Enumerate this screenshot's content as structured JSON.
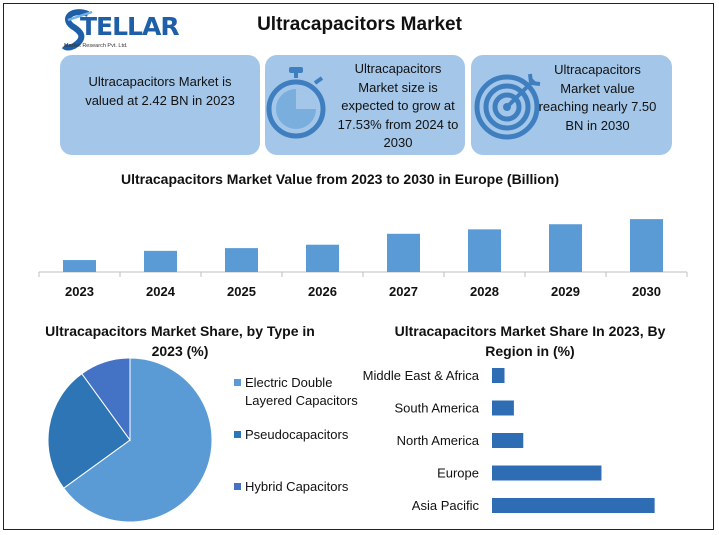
{
  "header": {
    "title": "Ultracapacitors Market",
    "logo_text": "TELLAR",
    "logo_subtext": "Market Research Pvt. Ltd."
  },
  "cards": [
    {
      "text": "Ultracapacitors Market is valued at 2.42 BN in 2023",
      "icon": "none"
    },
    {
      "text": "Ultracapacitors Market size is expected to grow at 17.53% from 2024 to 2030",
      "icon": "stopwatch-icon"
    },
    {
      "text": "Ultracapacitors Market value reaching nearly 7.50 BN in 2030",
      "icon": "target-icon"
    }
  ],
  "colors": {
    "card_bg": "#a4c7e9",
    "bar": "#5b9bd5",
    "pie_main": "#5b9bd5",
    "pie_second": "#2e75b6",
    "pie_third": "#4472c4",
    "hbar": "#2e6db4",
    "logo": "#1f5fa8"
  },
  "chart_data": [
    {
      "type": "bar",
      "title": "Ultracapacitors Market Value from 2023 to 2030 in Europe (Billion)",
      "categories": [
        "2023",
        "2024",
        "2025",
        "2026",
        "2027",
        "2028",
        "2029",
        "2030"
      ],
      "values": [
        0.35,
        0.62,
        0.7,
        0.8,
        1.12,
        1.25,
        1.4,
        1.55
      ],
      "ylim": [
        0,
        1.7
      ],
      "grid": false
    },
    {
      "type": "pie",
      "title": "Ultracapacitors Market Share, by Type in 2023 (%)",
      "labels": [
        "Electric Double Layered Capacitors",
        "Pseudocapacitors",
        "Hybrid Capacitors"
      ],
      "values": [
        65,
        25,
        10
      ],
      "legend": "right"
    },
    {
      "type": "bar",
      "orientation": "horizontal",
      "title": "Ultracapacitors Market Share In 2023, By Region in (%)",
      "categories": [
        "Middle East & Africa",
        "South America",
        "North America",
        "Europe",
        "Asia Pacific"
      ],
      "values": [
        4,
        7,
        10,
        35,
        52
      ],
      "xlim": [
        0,
        55
      ]
    }
  ]
}
